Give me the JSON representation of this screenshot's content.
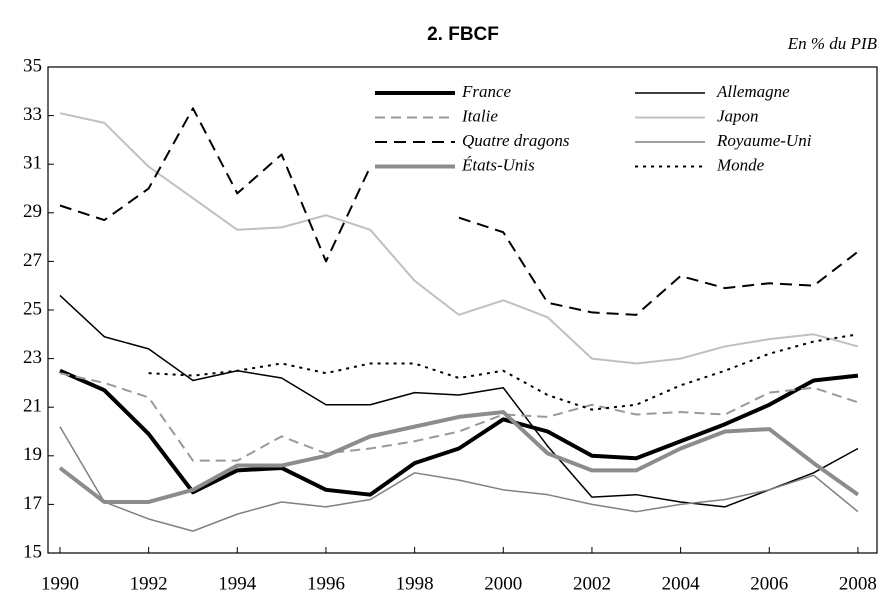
{
  "chart_data": {
    "type": "line",
    "title": "2. FBCF",
    "subtitle": "En % du PIB",
    "x": [
      1990,
      1991,
      1992,
      1993,
      1994,
      1995,
      1996,
      1997,
      1998,
      1999,
      2000,
      2001,
      2002,
      2003,
      2004,
      2005,
      2006,
      2007,
      2008
    ],
    "xlim": [
      1989.73,
      2008.43
    ],
    "xticks": [
      1990,
      1992,
      1994,
      1996,
      1998,
      2000,
      2002,
      2004,
      2006,
      2008
    ],
    "ylim": [
      15,
      35
    ],
    "yticks": [
      15,
      17,
      19,
      21,
      23,
      25,
      27,
      29,
      31,
      33,
      35
    ],
    "series": [
      {
        "name": "France",
        "color": "#000000",
        "width": 4,
        "dash": "none",
        "values": [
          22.5,
          21.7,
          19.9,
          17.5,
          18.4,
          18.5,
          17.6,
          17.4,
          18.7,
          19.3,
          20.5,
          20.0,
          19.0,
          18.9,
          19.6,
          20.3,
          21.1,
          22.1,
          22.3
        ]
      },
      {
        "name": "Allemagne",
        "color": "#000000",
        "width": 1.5,
        "dash": "none",
        "values": [
          25.6,
          23.9,
          23.4,
          22.1,
          22.5,
          22.2,
          21.1,
          21.1,
          21.6,
          21.5,
          21.8,
          19.4,
          17.3,
          17.4,
          17.1,
          16.9,
          17.6,
          18.3,
          19.3
        ]
      },
      {
        "name": "Italie",
        "color": "#999999",
        "width": 2,
        "dash": "10,6",
        "values": [
          22.4,
          22.0,
          21.4,
          18.8,
          18.8,
          19.8,
          19.1,
          19.3,
          19.6,
          20.0,
          20.7,
          20.6,
          21.1,
          20.7,
          20.8,
          20.7,
          21.6,
          21.8,
          21.2
        ]
      },
      {
        "name": "Japon",
        "color": "#c0c0c0",
        "width": 2,
        "dash": "none",
        "values": [
          33.1,
          32.7,
          30.9,
          29.6,
          28.3,
          28.4,
          28.9,
          28.3,
          26.2,
          24.8,
          25.4,
          24.7,
          23.0,
          22.8,
          23.0,
          23.5,
          23.8,
          24.0,
          23.5
        ]
      },
      {
        "name": "Quatre dragons",
        "color": "#000000",
        "width": 2,
        "dash": "12,7",
        "values": [
          29.3,
          28.7,
          30.0,
          33.3,
          29.8,
          31.4,
          27.0,
          30.9,
          null,
          28.8,
          28.2,
          25.3,
          24.9,
          24.8,
          26.4,
          25.9,
          26.1,
          26.0,
          27.4
        ]
      },
      {
        "name": "Royaume-Uni",
        "color": "#808080",
        "width": 1.5,
        "dash": "none",
        "values": [
          20.2,
          17.1,
          16.4,
          15.9,
          16.6,
          17.1,
          16.9,
          17.2,
          18.3,
          18.0,
          17.6,
          17.4,
          17.0,
          16.7,
          17.0,
          17.2,
          17.6,
          18.2,
          16.7
        ]
      },
      {
        "name": "États-Unis",
        "color": "#8c8c8c",
        "width": 4,
        "dash": "none",
        "values": [
          18.5,
          17.1,
          17.1,
          17.6,
          18.6,
          18.6,
          19.0,
          19.8,
          20.2,
          20.6,
          20.8,
          19.1,
          18.4,
          18.4,
          19.3,
          20.0,
          20.1,
          18.7,
          17.4
        ]
      },
      {
        "name": "Monde",
        "color": "#000000",
        "width": 2,
        "dash": "3,5",
        "values": [
          null,
          null,
          22.4,
          22.3,
          22.5,
          22.8,
          22.4,
          22.8,
          22.8,
          22.2,
          22.5,
          21.5,
          20.9,
          21.1,
          21.9,
          22.5,
          23.2,
          23.7,
          24.0
        ]
      }
    ]
  }
}
